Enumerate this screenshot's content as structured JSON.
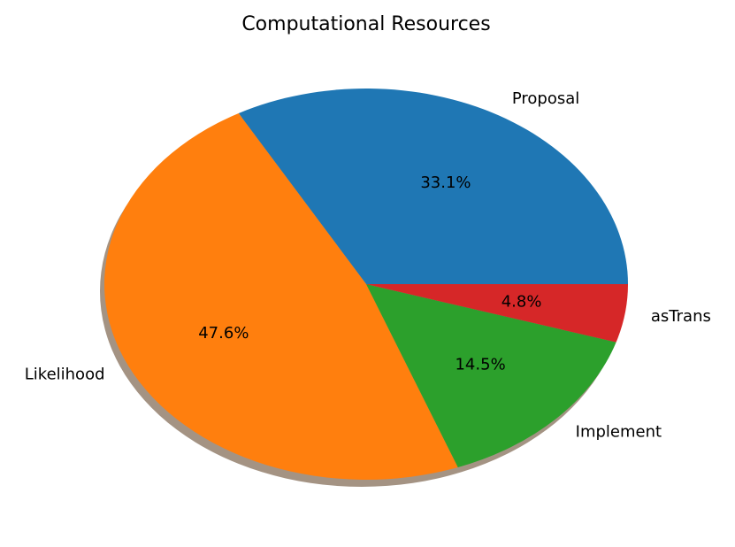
{
  "chart_data": {
    "type": "pie",
    "title": "Computational Resources",
    "start_angle_deg": 0,
    "direction": "counterclockwise",
    "shadow": true,
    "slices": [
      {
        "label": "Proposal",
        "value": 33.1,
        "pct_text": "33.1%",
        "color": "#1f77b4"
      },
      {
        "label": "Likelihood",
        "value": 47.6,
        "pct_text": "47.6%",
        "color": "#ff7f0e"
      },
      {
        "label": "Implement",
        "value": 14.5,
        "pct_text": "14.5%",
        "color": "#2ca02c"
      },
      {
        "label": "asTrans",
        "value": 4.8,
        "pct_text": "4.8%",
        "color": "#d62728"
      }
    ]
  }
}
